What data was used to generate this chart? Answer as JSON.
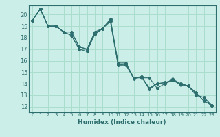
{
  "title": "",
  "xlabel": "Humidex (Indice chaleur)",
  "ylabel": "",
  "bg_color": "#cceee8",
  "grid_color": "#aaddcc",
  "line_color": "#2d6e6e",
  "xlim": [
    -0.5,
    23.5
  ],
  "ylim": [
    11.5,
    20.8
  ],
  "yticks": [
    12,
    13,
    14,
    15,
    16,
    17,
    18,
    19,
    20
  ],
  "xticks": [
    0,
    1,
    2,
    3,
    4,
    5,
    6,
    7,
    8,
    9,
    10,
    11,
    12,
    13,
    14,
    15,
    16,
    17,
    18,
    19,
    20,
    21,
    22,
    23
  ],
  "series": [
    [
      19.5,
      20.5,
      19.0,
      19.0,
      18.5,
      18.5,
      17.2,
      17.0,
      18.4,
      18.8,
      19.5,
      15.6,
      15.6,
      14.5,
      14.5,
      14.5,
      13.6,
      14.0,
      14.4,
      14.0,
      13.8,
      13.2,
      12.5,
      12.1
    ],
    [
      19.5,
      20.5,
      19.0,
      19.0,
      18.5,
      18.2,
      17.0,
      17.0,
      18.3,
      18.8,
      19.6,
      15.8,
      15.8,
      14.5,
      14.6,
      13.6,
      14.0,
      14.1,
      14.3,
      14.0,
      13.8,
      13.0,
      12.8,
      12.1
    ],
    [
      19.5,
      20.5,
      19.0,
      19.0,
      18.5,
      18.2,
      17.0,
      16.8,
      18.3,
      18.8,
      19.4,
      15.6,
      15.7,
      14.4,
      14.6,
      13.5,
      14.0,
      14.0,
      14.3,
      13.9,
      13.8,
      13.0,
      12.8,
      12.1
    ],
    [
      19.5,
      20.5,
      19.0,
      19.0,
      18.5,
      18.5,
      17.2,
      17.0,
      18.5,
      18.8,
      19.6,
      15.7,
      15.7,
      14.5,
      14.6,
      13.6,
      14.0,
      14.1,
      14.3,
      14.0,
      13.8,
      13.2,
      12.5,
      12.1
    ]
  ]
}
